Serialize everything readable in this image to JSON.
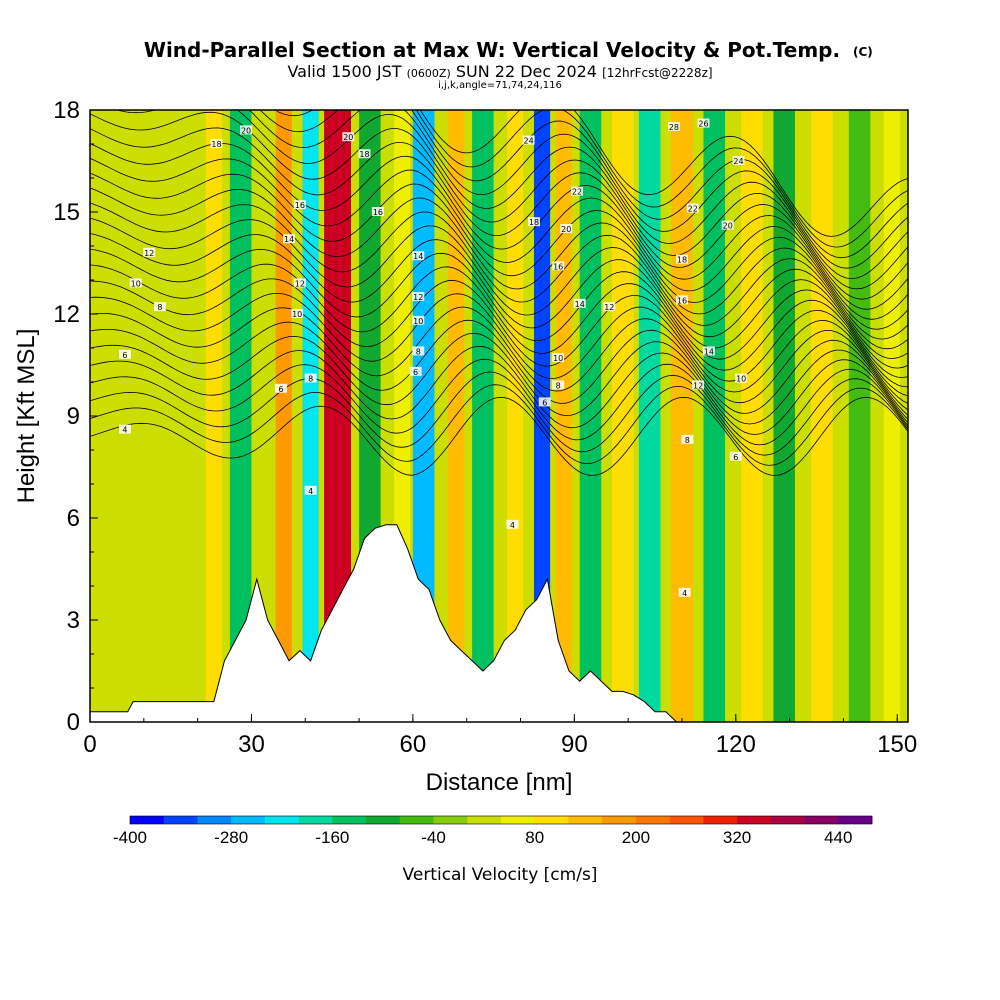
{
  "header": {
    "title": "Wind-Parallel Section at Max W: Vertical Velocity & Pot.Temp.",
    "copyright": "(C)",
    "valid_prefix": "Valid 1500 JST",
    "valid_z": "(0600Z)",
    "valid_date": "SUN 22 Dec 2024",
    "forecast": "[12hrFcst@2228z]",
    "indices": "i,j,k,angle=71,74,24,116"
  },
  "chart_data": {
    "type": "heatmap",
    "xlabel": "Distance [nm]",
    "ylabel": "Height [Kft MSL]",
    "xlim": [
      0,
      152
    ],
    "ylim": [
      0,
      18
    ],
    "x_ticks": [
      0,
      30,
      60,
      90,
      120,
      150
    ],
    "y_ticks": [
      0,
      3,
      6,
      9,
      12,
      15,
      18
    ],
    "colorbar": {
      "label": "Vertical Velocity [cm/s]",
      "range": [
        -400,
        480
      ],
      "tick_labels": [
        "-400",
        "-280",
        "-160",
        "-40",
        "80",
        "200",
        "320",
        "440"
      ],
      "tick_values": [
        -400,
        -280,
        -160,
        -40,
        80,
        200,
        320,
        440
      ],
      "colors": [
        "#0000ff",
        "#0044ff",
        "#0088ff",
        "#00bbff",
        "#00e5ee",
        "#00d9a0",
        "#00c060",
        "#10a830",
        "#44bb11",
        "#88cc11",
        "#ccdd00",
        "#eeee00",
        "#ffdd00",
        "#ffbb00",
        "#ff9900",
        "#ff7700",
        "#ff5500",
        "#ee2200",
        "#cc0022",
        "#aa0044",
        "#880066",
        "#660088"
      ]
    },
    "terrain_profile": {
      "x": [
        0,
        7,
        8,
        23,
        25,
        27,
        29,
        31,
        33,
        35,
        37,
        39,
        41,
        43,
        45,
        47,
        49,
        51,
        53,
        55,
        57,
        59,
        61,
        63,
        65,
        67,
        69,
        71,
        73,
        75,
        77,
        79,
        81,
        83,
        85,
        87,
        89,
        91,
        93,
        95,
        97,
        99,
        101,
        103,
        105,
        107,
        109,
        111,
        150,
        152
      ],
      "height_kft": [
        0.3,
        0.3,
        0.6,
        0.6,
        1.8,
        2.4,
        3.0,
        4.2,
        3.0,
        2.4,
        1.8,
        2.1,
        1.8,
        2.7,
        3.3,
        3.9,
        4.5,
        5.4,
        5.7,
        5.8,
        5.8,
        5.1,
        4.2,
        3.9,
        3.0,
        2.4,
        2.1,
        1.8,
        1.5,
        1.8,
        2.4,
        2.7,
        3.3,
        3.6,
        4.2,
        2.4,
        1.5,
        1.2,
        1.5,
        1.2,
        0.9,
        0.9,
        0.8,
        0.6,
        0.3,
        0.3,
        0,
        0,
        0,
        0
      ]
    },
    "updraft_bands": [
      {
        "x": 23,
        "w": 3,
        "value": 80
      },
      {
        "x": 28,
        "w": 4,
        "value": -160
      },
      {
        "x": 36,
        "w": 3,
        "value": 180
      },
      {
        "x": 41,
        "w": 3,
        "value": -220
      },
      {
        "x": 46,
        "w": 5,
        "value": 320
      },
      {
        "x": 52,
        "w": 4,
        "value": -120
      },
      {
        "x": 58,
        "w": 3,
        "value": 60
      },
      {
        "x": 62,
        "w": 4,
        "value": -280
      },
      {
        "x": 68,
        "w": 3,
        "value": 120
      },
      {
        "x": 73,
        "w": 4,
        "value": -160
      },
      {
        "x": 79,
        "w": 3,
        "value": 100
      },
      {
        "x": 84,
        "w": 3,
        "value": -340
      },
      {
        "x": 88,
        "w": 3,
        "value": 150
      },
      {
        "x": 93,
        "w": 4,
        "value": -140
      },
      {
        "x": 99,
        "w": 4,
        "value": 100
      },
      {
        "x": 104,
        "w": 4,
        "value": -200
      },
      {
        "x": 110,
        "w": 4,
        "value": 140
      },
      {
        "x": 116,
        "w": 4,
        "value": -140
      },
      {
        "x": 123,
        "w": 4,
        "value": 100
      },
      {
        "x": 129,
        "w": 4,
        "value": -90
      },
      {
        "x": 136,
        "w": 4,
        "value": 80
      },
      {
        "x": 143,
        "w": 4,
        "value": -60
      },
      {
        "x": 149,
        "w": 3,
        "value": 60
      }
    ],
    "contour_labels": [
      {
        "text": "4",
        "x": 6.5,
        "y": 8.6
      },
      {
        "text": "6",
        "x": 6.5,
        "y": 10.8
      },
      {
        "text": "8",
        "x": 13.0,
        "y": 12.2
      },
      {
        "text": "10",
        "x": 8.5,
        "y": 12.9
      },
      {
        "text": "12",
        "x": 11.0,
        "y": 13.8
      },
      {
        "text": "18",
        "x": 23.5,
        "y": 17.0
      },
      {
        "text": "20",
        "x": 29.0,
        "y": 17.4
      },
      {
        "text": "16",
        "x": 39.0,
        "y": 15.2
      },
      {
        "text": "14",
        "x": 37.0,
        "y": 14.2
      },
      {
        "text": "12",
        "x": 39.0,
        "y": 12.9
      },
      {
        "text": "10",
        "x": 38.5,
        "y": 12.0
      },
      {
        "text": "8",
        "x": 41.0,
        "y": 10.1
      },
      {
        "text": "6",
        "x": 35.5,
        "y": 9.8
      },
      {
        "text": "4",
        "x": 41.0,
        "y": 6.8
      },
      {
        "text": "20",
        "x": 48.0,
        "y": 17.2
      },
      {
        "text": "18",
        "x": 51.0,
        "y": 16.7
      },
      {
        "text": "16",
        "x": 53.5,
        "y": 15.0
      },
      {
        "text": "14",
        "x": 61.0,
        "y": 13.7
      },
      {
        "text": "12",
        "x": 61.0,
        "y": 12.5
      },
      {
        "text": "10",
        "x": 61.0,
        "y": 11.8
      },
      {
        "text": "8",
        "x": 61.0,
        "y": 10.9
      },
      {
        "text": "6",
        "x": 60.5,
        "y": 10.3
      },
      {
        "text": "4",
        "x": 78.5,
        "y": 5.8
      },
      {
        "text": "24",
        "x": 81.5,
        "y": 17.1
      },
      {
        "text": "18",
        "x": 82.5,
        "y": 14.7
      },
      {
        "text": "20",
        "x": 88.5,
        "y": 14.5
      },
      {
        "text": "22",
        "x": 90.5,
        "y": 15.6
      },
      {
        "text": "16",
        "x": 87.0,
        "y": 13.4
      },
      {
        "text": "14",
        "x": 91.0,
        "y": 12.3
      },
      {
        "text": "12",
        "x": 96.5,
        "y": 12.2
      },
      {
        "text": "10",
        "x": 87.0,
        "y": 10.7
      },
      {
        "text": "8",
        "x": 87.0,
        "y": 9.9
      },
      {
        "text": "6",
        "x": 84.5,
        "y": 9.4
      },
      {
        "text": "28",
        "x": 108.5,
        "y": 17.5
      },
      {
        "text": "26",
        "x": 114.0,
        "y": 17.6
      },
      {
        "text": "24",
        "x": 120.5,
        "y": 16.5
      },
      {
        "text": "22",
        "x": 112.0,
        "y": 15.1
      },
      {
        "text": "20",
        "x": 118.5,
        "y": 14.6
      },
      {
        "text": "18",
        "x": 110.0,
        "y": 13.6
      },
      {
        "text": "16",
        "x": 110.0,
        "y": 12.4
      },
      {
        "text": "14",
        "x": 115.0,
        "y": 10.9
      },
      {
        "text": "12",
        "x": 113.0,
        "y": 9.9
      },
      {
        "text": "10",
        "x": 121.0,
        "y": 10.1
      },
      {
        "text": "8",
        "x": 111.0,
        "y": 8.3
      },
      {
        "text": "6",
        "x": 120.0,
        "y": 7.8
      },
      {
        "text": "4",
        "x": 110.5,
        "y": 3.8
      }
    ]
  }
}
